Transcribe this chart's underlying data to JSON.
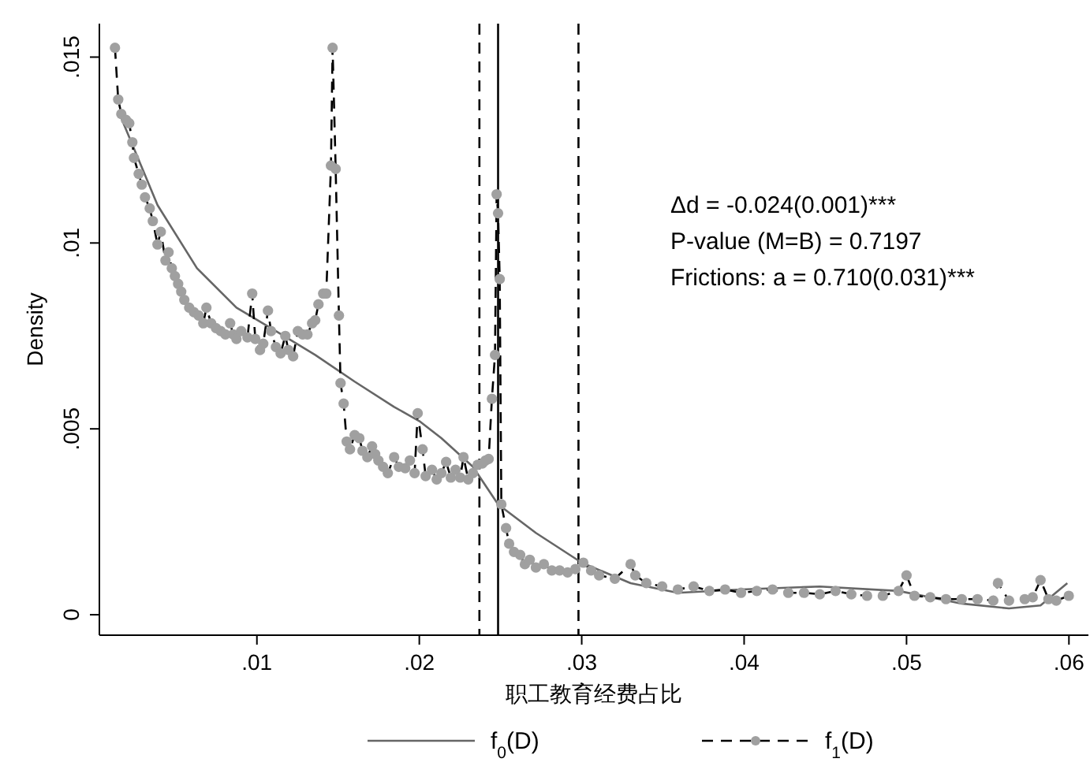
{
  "chart_data": {
    "type": "line",
    "xlabel": "职工教育经费占比",
    "ylabel": "Density",
    "xlim": [
      0.0003,
      0.0612
    ],
    "ylim": [
      -0.00055,
      0.0159
    ],
    "xticks": [
      {
        "value": 0.01,
        "label": ".01"
      },
      {
        "value": 0.02,
        "label": ".02"
      },
      {
        "value": 0.03,
        "label": ".03"
      },
      {
        "value": 0.04,
        "label": ".04"
      },
      {
        "value": 0.05,
        "label": ".05"
      },
      {
        "value": 0.06,
        "label": ".06"
      }
    ],
    "yticks": [
      0,
      {
        "value": 0.005,
        "label": ".005"
      },
      {
        "value": 0.01,
        "label": ".01"
      },
      {
        "value": 0.015,
        "label": ".015"
      }
    ],
    "grid": false,
    "legend": "bottom",
    "annotations": [
      "Δd = -0.024(0.001)***",
      "P-value (M=B) = 0.7197",
      "Frictions: a = 0.710(0.031)***"
    ],
    "ref_lines": [
      {
        "axis": "x",
        "value": 0.0237,
        "color": "#000000",
        "line_style": "dashed"
      },
      {
        "axis": "x",
        "value": 0.02485,
        "color": "#000000",
        "line_style": "solid"
      },
      {
        "axis": "x",
        "value": 0.0298,
        "color": "#000000",
        "line_style": "dashed"
      }
    ],
    "series": [
      {
        "name": "f$_{0}$(D)",
        "color": "#666666",
        "marker": "none",
        "line_style": "solid",
        "x": [
          0.00146,
          0.00388,
          0.00631,
          0.00874,
          0.01117,
          0.01359,
          0.01602,
          0.01845,
          0.02,
          0.02136,
          0.0233,
          0.02485,
          0.02718,
          0.03,
          0.03301,
          0.03592,
          0.03981,
          0.04466,
          0.04951,
          0.0534,
          0.05631,
          0.05825,
          0.0599
        ],
        "values": [
          0.01356,
          0.01102,
          0.00932,
          0.00826,
          0.00763,
          0.00699,
          0.00627,
          0.00559,
          0.00521,
          0.00475,
          0.00398,
          0.00297,
          0.0022,
          0.0014,
          0.00085,
          0.00059,
          0.00068,
          0.00076,
          0.00064,
          0.0003,
          0.00017,
          0.00025,
          0.00085
        ]
      },
      {
        "name": "f$_{1}$(D)",
        "color": "#a0a0a0",
        "marker": "circle",
        "line_style": "dashed",
        "x": [
          0.00126,
          0.00146,
          0.00165,
          0.00194,
          0.00214,
          0.00233,
          0.00243,
          0.00272,
          0.00291,
          0.00311,
          0.0034,
          0.00359,
          0.00388,
          0.00408,
          0.00437,
          0.00456,
          0.00476,
          0.00495,
          0.00515,
          0.00534,
          0.00553,
          0.00583,
          0.00612,
          0.00641,
          0.0067,
          0.00689,
          0.00718,
          0.00748,
          0.00777,
          0.00806,
          0.00835,
          0.00854,
          0.00874,
          0.00903,
          0.00942,
          0.00971,
          0.0099,
          0.01019,
          0.01039,
          0.01068,
          0.01087,
          0.01117,
          0.01146,
          0.01175,
          0.01194,
          0.01223,
          0.01252,
          0.01282,
          0.01311,
          0.0134,
          0.01359,
          0.01379,
          0.01408,
          0.01427,
          0.01456,
          0.01466,
          0.01485,
          0.01505,
          0.01515,
          0.01534,
          0.01553,
          0.01573,
          0.01602,
          0.01631,
          0.0165,
          0.0168,
          0.01709,
          0.01728,
          0.01748,
          0.01777,
          0.01806,
          0.01845,
          0.01874,
          0.01913,
          0.01942,
          0.01971,
          0.0199,
          0.0202,
          0.02039,
          0.02078,
          0.02107,
          0.02136,
          0.02165,
          0.02194,
          0.02223,
          0.02252,
          0.02272,
          0.02301,
          0.0233,
          0.02359,
          0.02388,
          0.02408,
          0.02427,
          0.02447,
          0.02466,
          0.02476,
          0.02485,
          0.02495,
          0.02505,
          0.02534,
          0.02553,
          0.02583,
          0.02621,
          0.0265,
          0.0268,
          0.02718,
          0.02767,
          0.02816,
          0.02864,
          0.02913,
          0.02961,
          0.0301,
          0.03058,
          0.03107,
          0.03204,
          0.03301,
          0.0333,
          0.03398,
          0.03495,
          0.03592,
          0.03689,
          0.03786,
          0.03883,
          0.03981,
          0.04078,
          0.04175,
          0.04272,
          0.04369,
          0.04466,
          0.04563,
          0.0466,
          0.04757,
          0.04854,
          0.04951,
          0.05,
          0.05049,
          0.05146,
          0.05243,
          0.0534,
          0.05437,
          0.05534,
          0.05563,
          0.05631,
          0.05728,
          0.05777,
          0.05825,
          0.05874,
          0.05922,
          0.05999
        ],
        "values": [
          0.01525,
          0.01386,
          0.01347,
          0.01331,
          0.01322,
          0.01271,
          0.01229,
          0.01186,
          0.01157,
          0.01123,
          0.01093,
          0.01059,
          0.00996,
          0.0103,
          0.00953,
          0.00975,
          0.00932,
          0.00911,
          0.0089,
          0.00869,
          0.00847,
          0.00826,
          0.00814,
          0.00805,
          0.00784,
          0.00826,
          0.00784,
          0.00771,
          0.00763,
          0.00754,
          0.00784,
          0.00754,
          0.00742,
          0.00763,
          0.00746,
          0.00864,
          0.00742,
          0.00712,
          0.00729,
          0.00818,
          0.00763,
          0.0072,
          0.00703,
          0.0075,
          0.00712,
          0.00695,
          0.00763,
          0.00754,
          0.00754,
          0.00784,
          0.00792,
          0.00835,
          0.00864,
          0.00864,
          0.01208,
          0.01525,
          0.01199,
          0.00805,
          0.00623,
          0.00568,
          0.00466,
          0.00445,
          0.00483,
          0.00475,
          0.00441,
          0.00424,
          0.00453,
          0.00432,
          0.00415,
          0.00398,
          0.00381,
          0.00424,
          0.00398,
          0.00394,
          0.00415,
          0.00381,
          0.00542,
          0.00445,
          0.00373,
          0.0039,
          0.00364,
          0.00381,
          0.00411,
          0.00369,
          0.0039,
          0.00369,
          0.00424,
          0.00364,
          0.00381,
          0.00403,
          0.00407,
          0.00415,
          0.00419,
          0.00581,
          0.00699,
          0.01131,
          0.0108,
          0.00903,
          0.00297,
          0.00233,
          0.00191,
          0.00169,
          0.00161,
          0.00136,
          0.00148,
          0.00127,
          0.00136,
          0.00119,
          0.00119,
          0.00114,
          0.00123,
          0.0014,
          0.00119,
          0.00106,
          0.00097,
          0.00136,
          0.00106,
          0.00085,
          0.00076,
          0.00068,
          0.00076,
          0.00064,
          0.00068,
          0.00059,
          0.00064,
          0.00068,
          0.00059,
          0.00059,
          0.00055,
          0.00064,
          0.00055,
          0.00051,
          0.00051,
          0.00064,
          0.00106,
          0.00051,
          0.00047,
          0.00042,
          0.00042,
          0.00042,
          0.00038,
          0.00085,
          0.00038,
          0.00042,
          0.00047,
          0.00093,
          0.00042,
          0.00038,
          0.00051
        ]
      }
    ]
  }
}
